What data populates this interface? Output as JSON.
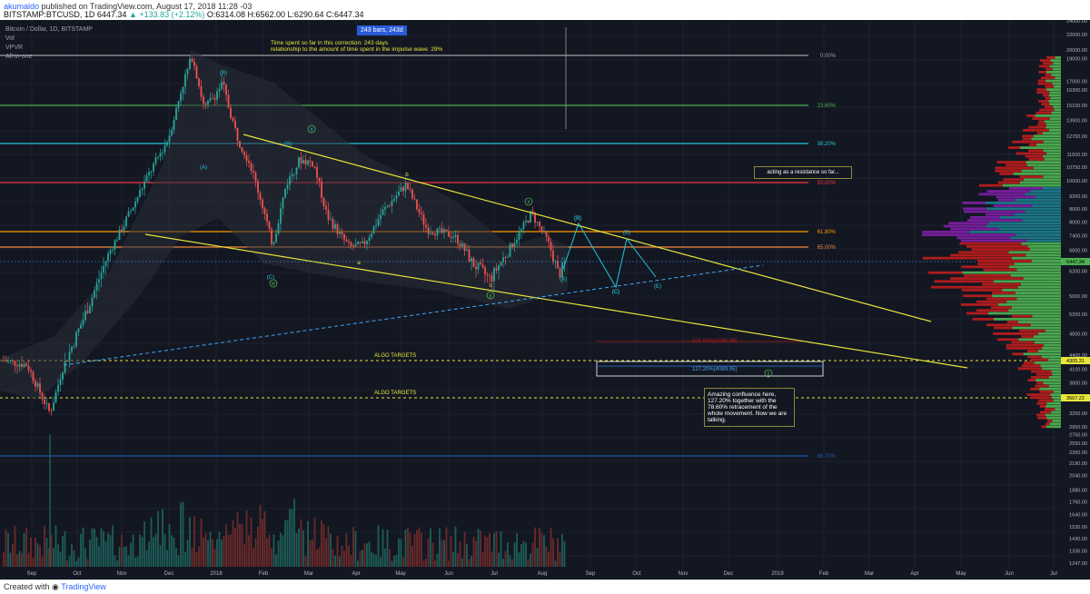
{
  "header": {
    "publisher": "akumaldo",
    "published_text": "published on TradingView.com, August 17, 2018 11:28 -03",
    "symbol": "BITSTAMP:BTCUSD, 1D",
    "last": "6447.34",
    "change": "▲ +133.83 (+2.12%)",
    "ohlc": "O:6314.08  H:6562.00  L:6290.64  C:6447.34"
  },
  "legend": [
    "Bitcoin / Dollar, 1D, BITSTAMP",
    "Vol",
    "VPVR",
    "All-in-one"
  ],
  "annotations": {
    "bars_badge": "243 bars, 243d",
    "time_note_1": "Time spent so far in this correction: 243 days",
    "time_note_2": "relationship to the amount of time spent in the impulse wave: 29%",
    "resistance_note": "acting as a resistance so far...",
    "confluence_note": "Amazing confluence here, 127.20% together with the 78.60% retracement of the whole movement. Now we are talking.",
    "algo_targets_1": "ALGO TARGETS",
    "algo_targets_2": "ALGO TARGETS",
    "fib_100": "100.00%(4785.49)",
    "fib_127": "127.20%(4089.95)"
  },
  "fib_levels": [
    {
      "label": "0.00%",
      "price": 19300,
      "color": "#9e9e9e"
    },
    {
      "label": "23.60%",
      "price": 15100,
      "color": "#4caf50"
    },
    {
      "label": "38.20%",
      "price": 12200,
      "color": "#26c6da"
    },
    {
      "label": "50.00%",
      "price": 9900,
      "color": "#f23645"
    },
    {
      "label": "61.80%",
      "price": 7600,
      "color": "#ff9800"
    },
    {
      "label": "65.00%",
      "price": 6900,
      "color": "#f0883e"
    },
    {
      "label": "88.70%",
      "price": 2280,
      "color": "#1e5aa8"
    }
  ],
  "price_axis": [
    "24000.00",
    "22000.00",
    "20000.00",
    "19000.00",
    "17000.00",
    "16300.00",
    "15100.00",
    "13900.00",
    "12700.00",
    "11500.00",
    "10750.00",
    "10000.00",
    "9200.00",
    "8600.00",
    "8000.00",
    "7400.00",
    "6800.00",
    "6200.00",
    "5600.00",
    "5200.00",
    "4800.00",
    "4400.00",
    "4100.00",
    "3800.00",
    "3500.00",
    "3200.00",
    "2950.00",
    "2750.00",
    "2550.00",
    "2350.00",
    "2190.00",
    "2040.00",
    "1880.00",
    "1760.00",
    "1640.00",
    "1530.00",
    "1430.00",
    "1335.00",
    "1247.00"
  ],
  "price_badges": {
    "current": "6447.34",
    "target_1": "4305.31",
    "target_2": "3507.22"
  },
  "time_axis": [
    "Sep",
    "Oct",
    "Nov",
    "Dec",
    "2018",
    "Feb",
    "Mar",
    "Apr",
    "May",
    "Jun",
    "Jul",
    "Aug",
    "Sep",
    "Oct",
    "Nov",
    "Dec",
    "2019",
    "Feb",
    "Mar",
    "Apr",
    "May",
    "Jun",
    "Jul"
  ],
  "wave_labels": [
    "(B)",
    "(A)",
    "(A)",
    "(C)",
    "x",
    "(B)",
    "(C)",
    "w",
    "b",
    "a",
    "c",
    "y",
    "x",
    "(A)",
    "(B)",
    "(C)",
    "(D)",
    "(E)",
    "z"
  ],
  "footer": {
    "created_with": "Created with",
    "brand": "TradingView"
  },
  "colors": {
    "bg": "#131722",
    "up": "#26a69a",
    "down": "#ef5350",
    "trend": "#e8e53a",
    "dashed": "#42a5f5"
  }
}
